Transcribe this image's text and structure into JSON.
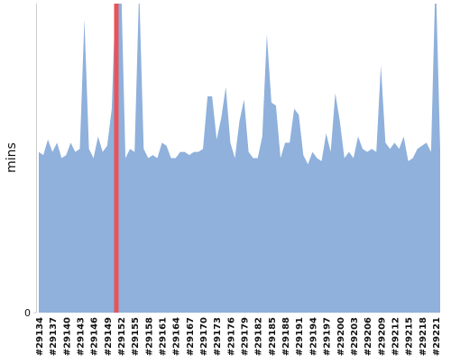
{
  "chart_data": {
    "type": "area",
    "y_label": "mins",
    "color": "#8fb1dc",
    "categories": [
      "#29134",
      null,
      null,
      "#29137",
      null,
      null,
      "#29140",
      null,
      null,
      "#29143",
      null,
      null,
      "#29146",
      null,
      null,
      "#29149",
      null,
      null,
      "#29152",
      null,
      null,
      "#29155",
      null,
      null,
      "#29158",
      null,
      null,
      "#29161",
      null,
      null,
      "#29164",
      null,
      null,
      "#29167",
      null,
      null,
      "#29170",
      null,
      null,
      "#29173",
      null,
      null,
      "#29176",
      null,
      null,
      "#29179",
      null,
      null,
      "#29182",
      null,
      null,
      "#29185",
      null,
      null,
      "#29188",
      null,
      null,
      "#29191",
      null,
      null,
      "#29194",
      null,
      null,
      "#29197",
      null,
      null,
      "#29200",
      null,
      null,
      "#29203",
      null,
      null,
      "#29206",
      null,
      null,
      "#29209",
      null,
      null,
      "#29212",
      null,
      null,
      "#29215",
      null,
      null,
      "#29218",
      null,
      null,
      "#29221",
      null
    ],
    "values": [
      52,
      51,
      56,
      52,
      55,
      50,
      51,
      55,
      52,
      53,
      95,
      53,
      50,
      57,
      52,
      54,
      66,
      110,
      110,
      50,
      53,
      52,
      105,
      53,
      50,
      51,
      50,
      55,
      54,
      50,
      50,
      52,
      52,
      51,
      52,
      52,
      53,
      70,
      70,
      56,
      63,
      73,
      55,
      50,
      62,
      69,
      52,
      50,
      50,
      57,
      90,
      68,
      67,
      50,
      55,
      55,
      66,
      64,
      51,
      48,
      52,
      50,
      49,
      58,
      52,
      71,
      62,
      50,
      52,
      50,
      57,
      53,
      52,
      53,
      52,
      80,
      55,
      53,
      55,
      53,
      57,
      49,
      50,
      53,
      54,
      55,
      52,
      110,
      53
    ],
    "ylim": [
      0,
      100
    ],
    "yticks": [
      0
    ],
    "highlight": {
      "index": 17,
      "color": "#e8545a"
    }
  }
}
